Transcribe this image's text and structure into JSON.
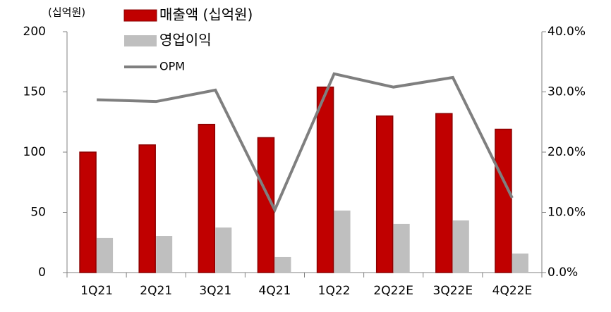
{
  "chart_data": {
    "type": "bar-line",
    "unit_label": "(십억원)",
    "categories": [
      "1Q21",
      "2Q21",
      "3Q21",
      "4Q21",
      "1Q22",
      "2Q22E",
      "3Q22E",
      "4Q22E"
    ],
    "series": [
      {
        "name": "매출액 (십억원)",
        "type": "bar",
        "color": "#c00000",
        "values": [
          100,
          106,
          123,
          112,
          154,
          130,
          132,
          119
        ]
      },
      {
        "name": "영업이익",
        "type": "bar",
        "color": "#bfbfbf",
        "values": [
          28.7,
          30.4,
          37.4,
          12.9,
          51.5,
          40.4,
          43.3,
          15.8
        ]
      },
      {
        "name": "OPM",
        "type": "line",
        "axis": "y2",
        "color": "#7f7f7f",
        "values": [
          28.7,
          28.4,
          30.3,
          10.4,
          33.0,
          30.8,
          32.4,
          12.4
        ]
      }
    ],
    "ylim": [
      0,
      200
    ],
    "yticks": [
      0,
      50,
      100,
      150,
      200
    ],
    "y2lim": [
      0,
      40
    ],
    "y2ticks": [
      {
        "value": 0,
        "label": "0.0%"
      },
      {
        "value": 10,
        "label": "10.0%"
      },
      {
        "value": 20,
        "label": "20.0%"
      },
      {
        "value": 30,
        "label": "30.0%"
      },
      {
        "value": 40,
        "label": "40.0%"
      }
    ]
  }
}
